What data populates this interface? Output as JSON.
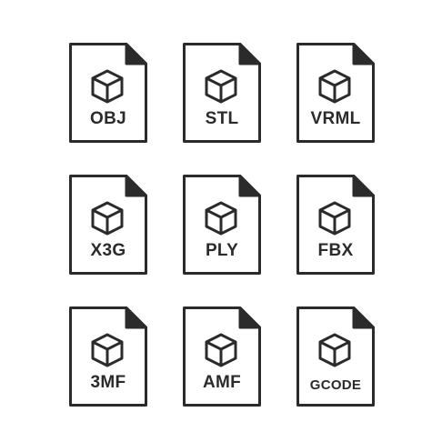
{
  "icons": [
    {
      "label": "OBJ",
      "icon": "cube-icon"
    },
    {
      "label": "STL",
      "icon": "cube-icon"
    },
    {
      "label": "VRML",
      "icon": "cube-icon"
    },
    {
      "label": "X3G",
      "icon": "cube-icon"
    },
    {
      "label": "PLY",
      "icon": "cube-icon"
    },
    {
      "label": "FBX",
      "icon": "cube-icon"
    },
    {
      "label": "3MF",
      "icon": "cube-icon"
    },
    {
      "label": "AMF",
      "icon": "cube-icon"
    },
    {
      "label": "GCODE",
      "icon": "cube-icon"
    }
  ],
  "colors": {
    "stroke": "#2b2b2b",
    "fold": "#2b2b2b",
    "background": "#ffffff"
  }
}
